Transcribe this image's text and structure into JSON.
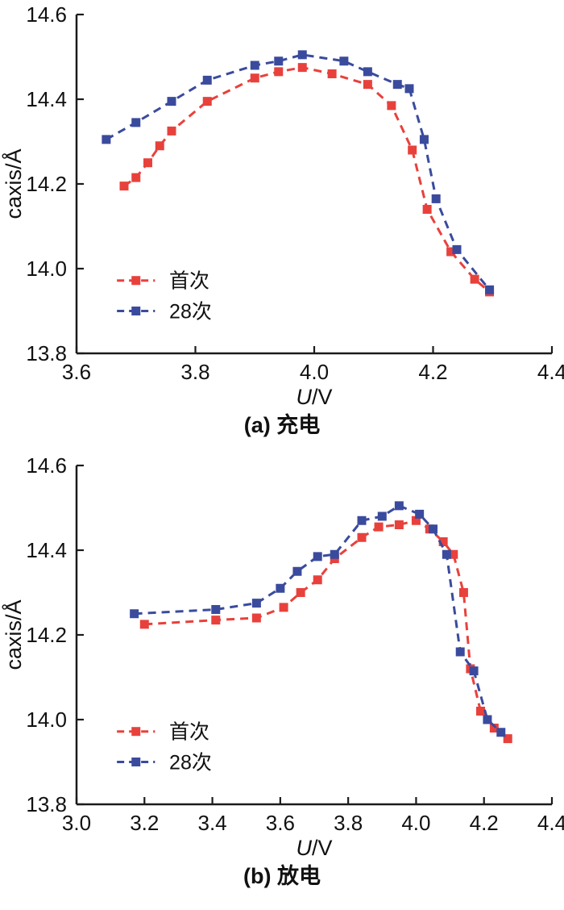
{
  "figure": {
    "background": "#ffffff",
    "axis_color": "#1b1b1b",
    "text_color": "#111111"
  },
  "chart_data": [
    {
      "type": "line",
      "title": "(a) 充电",
      "xlabel": "U/V",
      "ylabel": "caxis/Å",
      "xlim": [
        3.6,
        4.4
      ],
      "ylim": [
        13.8,
        14.6
      ],
      "xticks": [
        3.6,
        3.8,
        4.0,
        4.2,
        4.4
      ],
      "yticks": [
        13.8,
        14.0,
        14.2,
        14.4,
        14.6
      ],
      "grid": false,
      "legend_position": "lower-left",
      "series": [
        {
          "name": "首次",
          "color": "#e8413c",
          "marker": "square",
          "linestyle": "dashed",
          "points": [
            [
              3.68,
              14.195
            ],
            [
              3.7,
              14.215
            ],
            [
              3.72,
              14.25
            ],
            [
              3.74,
              14.29
            ],
            [
              3.76,
              14.325
            ],
            [
              3.82,
              14.395
            ],
            [
              3.9,
              14.45
            ],
            [
              3.94,
              14.465
            ],
            [
              3.98,
              14.475
            ],
            [
              4.03,
              14.46
            ],
            [
              4.09,
              14.435
            ],
            [
              4.13,
              14.385
            ],
            [
              4.165,
              14.28
            ],
            [
              4.19,
              14.14
            ],
            [
              4.23,
              14.04
            ],
            [
              4.27,
              13.975
            ],
            [
              4.295,
              13.945
            ]
          ]
        },
        {
          "name": "28次",
          "color": "#3a4b9d",
          "marker": "square",
          "linestyle": "dashed",
          "points": [
            [
              3.65,
              14.305
            ],
            [
              3.7,
              14.345
            ],
            [
              3.76,
              14.395
            ],
            [
              3.82,
              14.445
            ],
            [
              3.9,
              14.48
            ],
            [
              3.94,
              14.49
            ],
            [
              3.98,
              14.505
            ],
            [
              4.05,
              14.49
            ],
            [
              4.09,
              14.465
            ],
            [
              4.14,
              14.435
            ],
            [
              4.16,
              14.425
            ],
            [
              4.185,
              14.305
            ],
            [
              4.205,
              14.165
            ],
            [
              4.24,
              14.045
            ],
            [
              4.295,
              13.95
            ]
          ]
        }
      ]
    },
    {
      "type": "line",
      "title": "(b) 放电",
      "xlabel": "U/V",
      "ylabel": "caxis/Å",
      "xlim": [
        3.0,
        4.4
      ],
      "ylim": [
        13.8,
        14.6
      ],
      "xticks": [
        3.0,
        3.2,
        3.4,
        3.6,
        3.8,
        4.0,
        4.2,
        4.4
      ],
      "yticks": [
        13.8,
        14.0,
        14.2,
        14.4,
        14.6
      ],
      "grid": false,
      "legend_position": "lower-left",
      "series": [
        {
          "name": "首次",
          "color": "#e8413c",
          "marker": "square",
          "linestyle": "dashed",
          "points": [
            [
              3.2,
              14.225
            ],
            [
              3.41,
              14.235
            ],
            [
              3.53,
              14.24
            ],
            [
              3.61,
              14.265
            ],
            [
              3.66,
              14.3
            ],
            [
              3.71,
              14.33
            ],
            [
              3.76,
              14.38
            ],
            [
              3.84,
              14.43
            ],
            [
              3.89,
              14.455
            ],
            [
              3.95,
              14.46
            ],
            [
              4.0,
              14.47
            ],
            [
              4.04,
              14.45
            ],
            [
              4.08,
              14.42
            ],
            [
              4.11,
              14.39
            ],
            [
              4.14,
              14.3
            ],
            [
              4.16,
              14.12
            ],
            [
              4.19,
              14.02
            ],
            [
              4.23,
              13.98
            ],
            [
              4.27,
              13.955
            ]
          ]
        },
        {
          "name": "28次",
          "color": "#3a4b9d",
          "marker": "square",
          "linestyle": "dashed",
          "points": [
            [
              3.17,
              14.25
            ],
            [
              3.41,
              14.26
            ],
            [
              3.53,
              14.275
            ],
            [
              3.6,
              14.31
            ],
            [
              3.65,
              14.35
            ],
            [
              3.71,
              14.385
            ],
            [
              3.76,
              14.39
            ],
            [
              3.84,
              14.47
            ],
            [
              3.9,
              14.48
            ],
            [
              3.95,
              14.505
            ],
            [
              4.01,
              14.485
            ],
            [
              4.05,
              14.45
            ],
            [
              4.09,
              14.39
            ],
            [
              4.13,
              14.16
            ],
            [
              4.17,
              14.115
            ],
            [
              4.21,
              14.0
            ],
            [
              4.25,
              13.97
            ]
          ]
        }
      ]
    }
  ]
}
